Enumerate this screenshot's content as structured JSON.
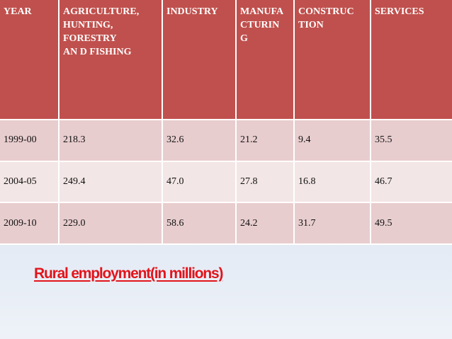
{
  "table": {
    "headers": [
      "YEAR",
      "AGRICULTURE,\nHUNTING,\nFORESTRY\nAN D FISHING",
      "INDUSTRY",
      "MANUFA\nCTURIN\nG",
      "CONSTRUC\nTION",
      "SERVICES"
    ],
    "rows": [
      [
        "1999-00",
        "218.3",
        "32.6",
        "21.2",
        "9.4",
        "35.5"
      ],
      [
        "2004-05",
        "249.4",
        "47.0",
        "27.8",
        "16.8",
        "46.7"
      ],
      [
        "2009-10",
        "229.0",
        "58.6",
        "24.2",
        "31.7",
        "49.5"
      ]
    ]
  },
  "caption": "Rural employment(in millions)",
  "colors": {
    "header_bg": "#c0504d",
    "row_odd_bg": "#e8cdce",
    "row_even_bg": "#f3e6e6",
    "caption": "#e3141b"
  }
}
